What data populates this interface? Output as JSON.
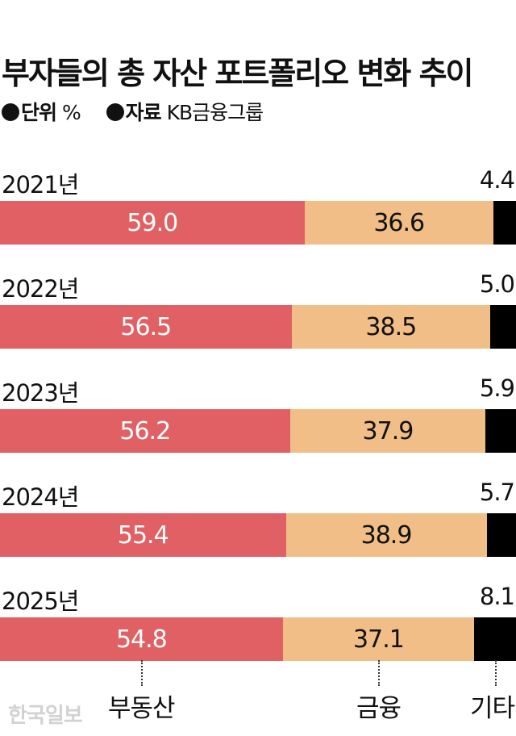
{
  "title": "부자들의 총 자산 포트폴리오 변화 추이",
  "meta": {
    "unit_label": "단위",
    "unit_value": "%",
    "source_label": "자료",
    "source_value": "KB금융그룹"
  },
  "logo_text": "한국일보",
  "chart_data": {
    "type": "bar",
    "orientation": "horizontal",
    "stacked": true,
    "categories": [
      "2021년",
      "2022년",
      "2023년",
      "2024년",
      "2025년"
    ],
    "series": [
      {
        "name": "부동산",
        "values": [
          59.0,
          56.5,
          56.2,
          55.4,
          54.8
        ],
        "color": "#e06063"
      },
      {
        "name": "금융",
        "values": [
          36.6,
          38.5,
          37.9,
          38.9,
          37.1
        ],
        "color": "#f0be86"
      },
      {
        "name": "기타",
        "values": [
          4.4,
          5.0,
          5.9,
          5.7,
          8.1
        ],
        "color": "#000000"
      }
    ],
    "value_labels": [
      [
        "59.0",
        "36.6",
        "4.4"
      ],
      [
        "56.5",
        "38.5",
        "5.0"
      ],
      [
        "56.2",
        "37.9",
        "5.9"
      ],
      [
        "55.4",
        "38.9",
        "5.7"
      ],
      [
        "54.8",
        "37.1",
        "8.1"
      ]
    ],
    "xlim": [
      0,
      100
    ],
    "grid": false,
    "legend": "bottom"
  }
}
